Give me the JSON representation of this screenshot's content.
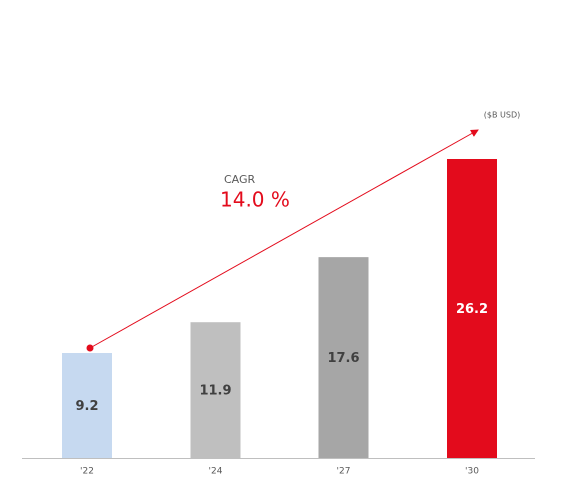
{
  "chart_data": {
    "type": "bar",
    "unit_label": "($B USD)",
    "annotation_title": "CAGR",
    "annotation_value": "14.0 %",
    "categories": [
      "'22",
      "'24",
      "'27",
      "'30"
    ],
    "values": [
      9.2,
      11.9,
      17.6,
      26.2
    ],
    "colors": [
      "#c6d9f0",
      "#bfbfbf",
      "#a6a6a6",
      "#e30b1c"
    ]
  }
}
